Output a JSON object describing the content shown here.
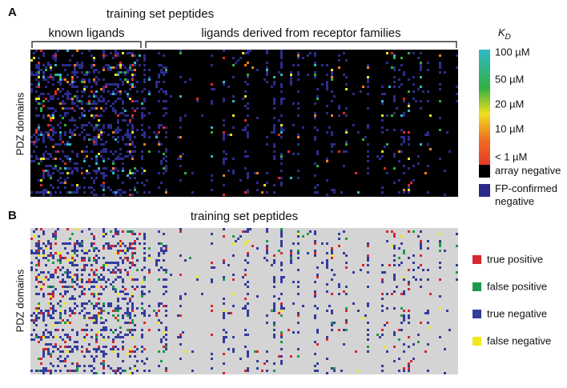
{
  "panel_a": {
    "label": "A",
    "title": "training set peptides",
    "groups": [
      "known ligands",
      "ligands derived from receptor families"
    ],
    "y_label": "PDZ domains",
    "colorbar": {
      "title": "K",
      "subscript": "D",
      "ticks": [
        "100 µM",
        "50 µM",
        "20 µM",
        "10 µM",
        "< 1 µM"
      ]
    },
    "legend": [
      "array negative",
      "FP-confirmed negative"
    ]
  },
  "panel_b": {
    "label": "B",
    "title": "training set peptides",
    "y_label": "PDZ domains",
    "legend": [
      "true positive",
      "false positive",
      "true negative",
      "false negative"
    ]
  }
}
